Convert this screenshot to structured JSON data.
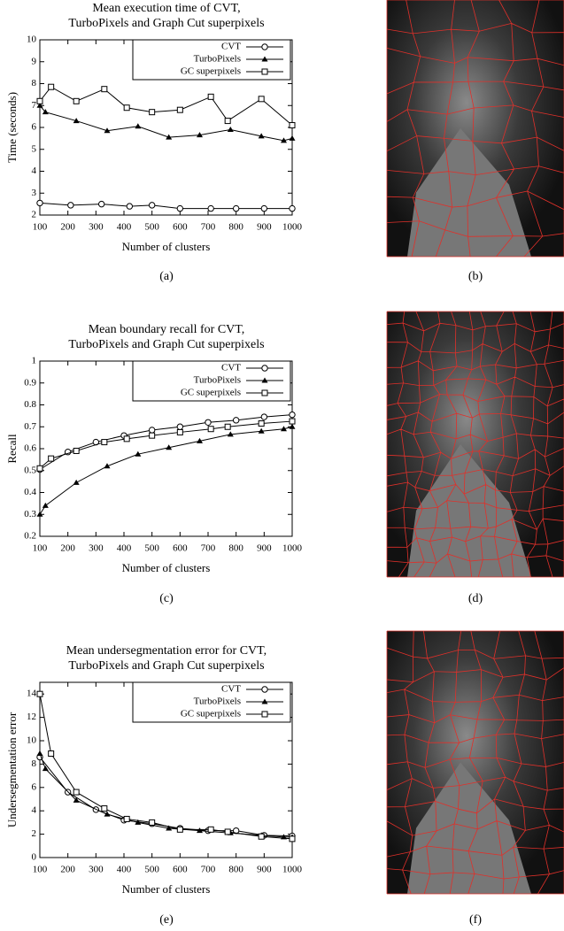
{
  "chart_data": [
    {
      "type": "line",
      "title": [
        "Mean execution time of CVT,",
        "TurboPixels and Graph Cut superpixels"
      ],
      "x_label": "Number of clusters",
      "y_label": "Time (seconds)",
      "xlim": [
        100,
        1000
      ],
      "xticks": [
        100,
        200,
        300,
        400,
        500,
        600,
        700,
        800,
        900,
        1000
      ],
      "ylim": [
        2,
        10
      ],
      "yticks": [
        2,
        3,
        4,
        5,
        6,
        7,
        8,
        9,
        10
      ],
      "legend": "upper right",
      "series": [
        {
          "name": "CVT",
          "color": "#000000",
          "marker": "circle",
          "x": [
            100,
            210,
            320,
            420,
            500,
            600,
            710,
            800,
            900,
            1000
          ],
          "values": [
            2.55,
            2.45,
            2.5,
            2.4,
            2.45,
            2.3,
            2.3,
            2.3,
            2.3,
            2.3
          ]
        },
        {
          "name": "TurboPixels",
          "color": "#000000",
          "marker": "triangle",
          "x": [
            100,
            120,
            230,
            340,
            450,
            560,
            670,
            780,
            890,
            970,
            1000
          ],
          "values": [
            7.0,
            6.7,
            6.3,
            5.85,
            6.05,
            5.55,
            5.65,
            5.9,
            5.6,
            5.4,
            5.5
          ]
        },
        {
          "name": "GC superpixels",
          "color": "#000000",
          "marker": "square",
          "x": [
            100,
            140,
            230,
            330,
            410,
            500,
            600,
            710,
            770,
            890,
            1000
          ],
          "values": [
            7.2,
            7.85,
            7.2,
            7.75,
            6.9,
            6.7,
            6.8,
            7.4,
            6.3,
            7.3,
            6.1
          ]
        }
      ]
    },
    {
      "type": "line",
      "title": [
        "Mean boundary recall for CVT,",
        "TurboPixels and Graph Cut superpixels"
      ],
      "x_label": "Number of clusters",
      "y_label": "Recall",
      "xlim": [
        100,
        1000
      ],
      "xticks": [
        100,
        200,
        300,
        400,
        500,
        600,
        700,
        800,
        900,
        1000
      ],
      "ylim": [
        0.2,
        1
      ],
      "yticks": [
        0.2,
        0.3,
        0.4,
        0.5,
        0.6,
        0.7,
        0.8,
        0.9,
        1
      ],
      "legend": "upper right",
      "series": [
        {
          "name": "CVT",
          "color": "#000000",
          "marker": "circle",
          "x": [
            100,
            200,
            300,
            400,
            500,
            600,
            700,
            800,
            900,
            1000
          ],
          "values": [
            0.505,
            0.585,
            0.63,
            0.66,
            0.685,
            0.7,
            0.72,
            0.73,
            0.745,
            0.755
          ]
        },
        {
          "name": "TurboPixels",
          "color": "#000000",
          "marker": "triangle",
          "x": [
            100,
            120,
            230,
            340,
            450,
            560,
            670,
            780,
            890,
            970,
            1000
          ],
          "values": [
            0.3,
            0.34,
            0.445,
            0.52,
            0.575,
            0.605,
            0.635,
            0.665,
            0.68,
            0.69,
            0.7
          ]
        },
        {
          "name": "GC superpixels",
          "color": "#000000",
          "marker": "square",
          "x": [
            100,
            140,
            230,
            330,
            410,
            500,
            600,
            710,
            770,
            890,
            1000
          ],
          "values": [
            0.51,
            0.555,
            0.59,
            0.63,
            0.645,
            0.66,
            0.675,
            0.69,
            0.7,
            0.715,
            0.725
          ]
        }
      ]
    },
    {
      "type": "line",
      "title": [
        "Mean undersegmentation error for CVT,",
        "TurboPixels and Graph Cut superpixels"
      ],
      "x_label": "Number of clusters",
      "y_label": "Undersegmentation error",
      "xlim": [
        100,
        1000
      ],
      "xticks": [
        100,
        200,
        300,
        400,
        500,
        600,
        700,
        800,
        900,
        1000
      ],
      "ylim": [
        0,
        15
      ],
      "yticks": [
        0,
        2,
        4,
        6,
        8,
        10,
        12,
        14
      ],
      "legend": "upper right",
      "series": [
        {
          "name": "CVT",
          "color": "#000000",
          "marker": "circle",
          "x": [
            100,
            200,
            300,
            400,
            500,
            600,
            700,
            800,
            900,
            1000
          ],
          "values": [
            8.6,
            5.6,
            4.1,
            3.2,
            2.9,
            2.5,
            2.3,
            2.3,
            1.9,
            1.85
          ]
        },
        {
          "name": "TurboPixels",
          "color": "#000000",
          "marker": "triangle",
          "x": [
            100,
            120,
            230,
            340,
            450,
            560,
            670,
            780,
            890,
            970,
            1000
          ],
          "values": [
            8.9,
            7.6,
            4.9,
            3.7,
            3.0,
            2.5,
            2.3,
            2.1,
            1.9,
            1.75,
            1.75
          ]
        },
        {
          "name": "GC superpixels",
          "color": "#000000",
          "marker": "square",
          "x": [
            100,
            140,
            230,
            330,
            410,
            500,
            600,
            710,
            770,
            890,
            1000
          ],
          "values": [
            14,
            8.9,
            5.6,
            4.2,
            3.3,
            3.0,
            2.4,
            2.4,
            2.2,
            1.8,
            1.6
          ]
        }
      ]
    }
  ],
  "captions": [
    "(a)",
    "(b)",
    "(c)",
    "(d)",
    "(e)",
    "(f)"
  ]
}
